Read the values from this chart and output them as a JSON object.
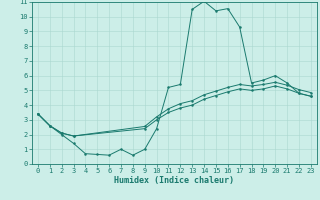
{
  "xlabel": "Humidex (Indice chaleur)",
  "xlim": [
    -0.5,
    23.5
  ],
  "ylim": [
    0,
    11
  ],
  "xticks": [
    0,
    1,
    2,
    3,
    4,
    5,
    6,
    7,
    8,
    9,
    10,
    11,
    12,
    13,
    14,
    15,
    16,
    17,
    18,
    19,
    20,
    21,
    22,
    23
  ],
  "yticks": [
    0,
    1,
    2,
    3,
    4,
    5,
    6,
    7,
    8,
    9,
    10,
    11
  ],
  "bg_color": "#cceee8",
  "line_color": "#1a7a6e",
  "grid_color": "#aad8d0",
  "curve1_x": [
    0,
    1,
    2,
    3,
    4,
    5,
    6,
    7,
    8,
    9,
    10,
    11,
    12,
    13,
    14,
    15,
    16,
    17,
    18,
    19,
    20,
    21,
    22,
    23
  ],
  "curve1_y": [
    3.4,
    2.6,
    2.0,
    1.4,
    0.7,
    0.65,
    0.6,
    1.0,
    0.6,
    1.0,
    2.4,
    5.2,
    5.4,
    10.5,
    11.05,
    10.4,
    10.55,
    9.3,
    5.5,
    5.7,
    6.0,
    5.5,
    4.8,
    4.6
  ],
  "curve2_x": [
    0,
    1,
    2,
    3,
    9,
    10,
    11,
    12,
    13,
    14,
    15,
    16,
    17,
    18,
    19,
    20,
    21,
    22,
    23
  ],
  "curve2_y": [
    3.4,
    2.6,
    2.1,
    1.9,
    2.4,
    3.0,
    3.5,
    3.8,
    4.0,
    4.4,
    4.65,
    4.9,
    5.1,
    5.0,
    5.1,
    5.3,
    5.1,
    4.8,
    4.6
  ],
  "curve3_x": [
    0,
    1,
    2,
    3,
    9,
    10,
    11,
    12,
    13,
    14,
    15,
    16,
    17,
    18,
    19,
    20,
    21,
    22,
    23
  ],
  "curve3_y": [
    3.4,
    2.6,
    2.1,
    1.9,
    2.55,
    3.2,
    3.75,
    4.1,
    4.3,
    4.7,
    4.95,
    5.2,
    5.4,
    5.3,
    5.4,
    5.55,
    5.35,
    5.05,
    4.85
  ],
  "lw": 0.7,
  "ms": 1.8,
  "tick_fontsize": 5.0,
  "xlabel_fontsize": 6.0
}
